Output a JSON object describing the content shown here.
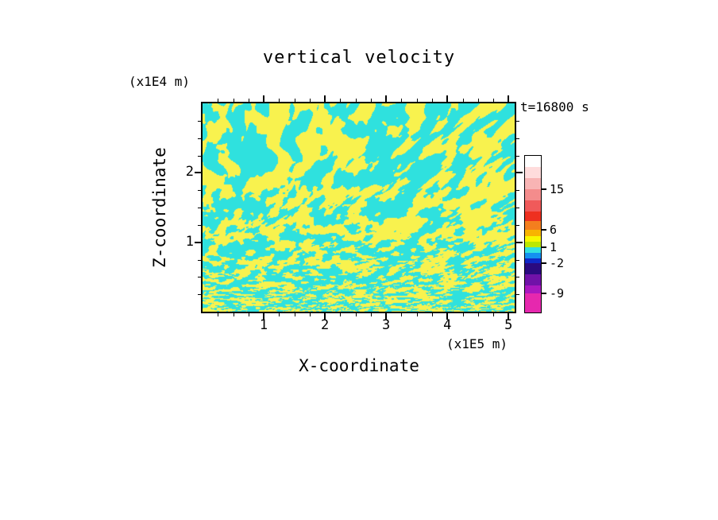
{
  "chart_data": {
    "type": "heatmap",
    "title": "vertical velocity",
    "annotation": "t=16800 s",
    "xlabel": "X-coordinate",
    "ylabel": "Z-coordinate",
    "x_unit": "(x1E5 m)",
    "y_unit": "(x1E4 m)",
    "x_range": [
      0,
      5.1
    ],
    "y_range": [
      0,
      3.0
    ],
    "x_ticks": [
      1,
      2,
      3,
      4,
      5
    ],
    "y_ticks": [
      1,
      2
    ],
    "minor_tick_step": 0.25,
    "grid": false,
    "legend_position": "right-colorbar",
    "field_description": "Chaotic interleaved cells of positive (yellow) and negative (cyan) vertical velocity; cells are tall and blobby in the upper part of the domain and become progressively finer toward the bottom boundary. Displayed field values lie roughly between -2 and +3, i.e. only the yellow and cyan bands of the colorbar appear in the plot.",
    "displayed_value_range": [
      -2,
      3
    ],
    "field_colors": {
      "positive": "#F8F24E",
      "negative": "#2FE1DE"
    },
    "noise_seed": 12345,
    "colorbar": {
      "labels": [
        {
          "text": "15",
          "boundary": 3
        },
        {
          "text": "6",
          "boundary": 7
        },
        {
          "text": "1",
          "boundary": 10
        },
        {
          "text": "-2",
          "boundary": 13
        },
        {
          "text": "-9",
          "boundary": 16
        }
      ],
      "segments": [
        {
          "color": "#FFFFFF",
          "h": 14
        },
        {
          "color": "#FFDCDC",
          "h": 14
        },
        {
          "color": "#F8B4B4",
          "h": 14
        },
        {
          "color": "#F48C8C",
          "h": 14
        },
        {
          "color": "#F05A5A",
          "h": 14
        },
        {
          "color": "#EE3020",
          "h": 12
        },
        {
          "color": "#F47E1E",
          "h": 11
        },
        {
          "color": "#F8B400",
          "h": 8
        },
        {
          "color": "#F8F800",
          "h": 7
        },
        {
          "color": "#BCE800",
          "h": 7
        },
        {
          "color": "#32E0E0",
          "h": 7
        },
        {
          "color": "#1490F0",
          "h": 7
        },
        {
          "color": "#1028C8",
          "h": 6
        },
        {
          "color": "#2A0A80",
          "h": 14
        },
        {
          "color": "#7012A8",
          "h": 14
        },
        {
          "color": "#AA18C0",
          "h": 10
        },
        {
          "color": "#E628AE",
          "h": 24
        }
      ]
    }
  }
}
